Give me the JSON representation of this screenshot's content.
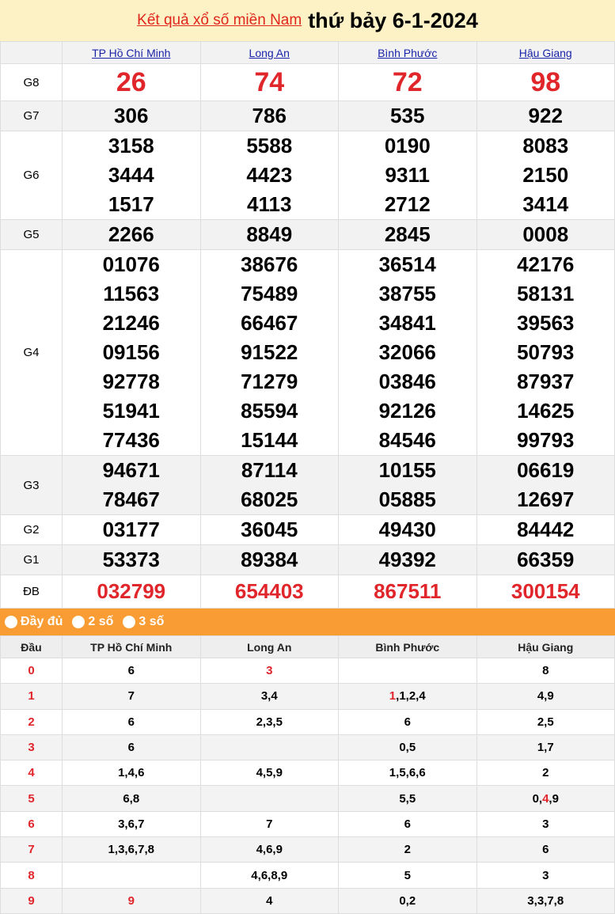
{
  "header": {
    "link": "Kết quả xổ số miền Nam",
    "date": "thứ bảy 6-1-2024"
  },
  "provinces": [
    "TP Hồ Chí Minh",
    "Long An",
    "Bình Phước",
    "Hậu Giang"
  ],
  "prizes": [
    {
      "label": "G8",
      "type": "big",
      "values": [
        [
          "26"
        ],
        [
          "74"
        ],
        [
          "72"
        ],
        [
          "98"
        ]
      ]
    },
    {
      "label": "G7",
      "values": [
        [
          "306"
        ],
        [
          "786"
        ],
        [
          "535"
        ],
        [
          "922"
        ]
      ]
    },
    {
      "label": "G6",
      "values": [
        [
          "3158",
          "3444",
          "1517"
        ],
        [
          "5588",
          "4423",
          "4113"
        ],
        [
          "0190",
          "9311",
          "2712"
        ],
        [
          "8083",
          "2150",
          "3414"
        ]
      ]
    },
    {
      "label": "G5",
      "values": [
        [
          "2266"
        ],
        [
          "8849"
        ],
        [
          "2845"
        ],
        [
          "0008"
        ]
      ]
    },
    {
      "label": "G4",
      "values": [
        [
          "01076",
          "11563",
          "21246",
          "09156",
          "92778",
          "51941",
          "77436"
        ],
        [
          "38676",
          "75489",
          "66467",
          "91522",
          "71279",
          "85594",
          "15144"
        ],
        [
          "36514",
          "38755",
          "34841",
          "32066",
          "03846",
          "92126",
          "84546"
        ],
        [
          "42176",
          "58131",
          "39563",
          "50793",
          "87937",
          "14625",
          "99793"
        ]
      ]
    },
    {
      "label": "G3",
      "values": [
        [
          "94671",
          "78467"
        ],
        [
          "87114",
          "68025"
        ],
        [
          "10155",
          "05885"
        ],
        [
          "06619",
          "12697"
        ]
      ]
    },
    {
      "label": "G2",
      "values": [
        [
          "03177"
        ],
        [
          "36045"
        ],
        [
          "49430"
        ],
        [
          "84442"
        ]
      ]
    },
    {
      "label": "G1",
      "values": [
        [
          "53373"
        ],
        [
          "89384"
        ],
        [
          "49392"
        ],
        [
          "66359"
        ]
      ]
    },
    {
      "label": "ĐB",
      "type": "db",
      "values": [
        [
          "032799"
        ],
        [
          "654403"
        ],
        [
          "867511"
        ],
        [
          "300154"
        ]
      ]
    }
  ],
  "filter": {
    "options": [
      "Đầy đủ",
      "2 số",
      "3 số"
    ]
  },
  "dau": {
    "header": "Đầu",
    "rows": [
      {
        "k": "0",
        "c": [
          {
            "d": [
              "6"
            ]
          },
          {
            "d": [
              "3"
            ],
            "red": [
              0
            ]
          },
          {
            "d": []
          },
          {
            "d": [
              "8"
            ]
          }
        ]
      },
      {
        "k": "1",
        "c": [
          {
            "d": [
              "7"
            ]
          },
          {
            "d": [
              "3",
              "4"
            ]
          },
          {
            "d": [
              "1",
              "1",
              "2",
              "4"
            ],
            "red": [
              0
            ]
          },
          {
            "d": [
              "4",
              "9"
            ]
          }
        ]
      },
      {
        "k": "2",
        "c": [
          {
            "d": [
              "6"
            ]
          },
          {
            "d": [
              "2",
              "3",
              "5"
            ]
          },
          {
            "d": [
              "6"
            ]
          },
          {
            "d": [
              "2",
              "5"
            ]
          }
        ]
      },
      {
        "k": "3",
        "c": [
          {
            "d": [
              "6"
            ]
          },
          {
            "d": []
          },
          {
            "d": [
              "0",
              "5"
            ]
          },
          {
            "d": [
              "1",
              "7"
            ]
          }
        ]
      },
      {
        "k": "4",
        "c": [
          {
            "d": [
              "1",
              "4",
              "6"
            ]
          },
          {
            "d": [
              "4",
              "5",
              "9"
            ]
          },
          {
            "d": [
              "1",
              "5",
              "6",
              "6"
            ]
          },
          {
            "d": [
              "2"
            ]
          }
        ]
      },
      {
        "k": "5",
        "c": [
          {
            "d": [
              "6",
              "8"
            ]
          },
          {
            "d": []
          },
          {
            "d": [
              "5",
              "5"
            ]
          },
          {
            "d": [
              "0",
              "4",
              "9"
            ],
            "red": [
              1
            ]
          }
        ]
      },
      {
        "k": "6",
        "c": [
          {
            "d": [
              "3",
              "6",
              "7"
            ]
          },
          {
            "d": [
              "7"
            ]
          },
          {
            "d": [
              "6"
            ]
          },
          {
            "d": [
              "3"
            ]
          }
        ]
      },
      {
        "k": "7",
        "c": [
          {
            "d": [
              "1",
              "3",
              "6",
              "7",
              "8"
            ]
          },
          {
            "d": [
              "4",
              "6",
              "9"
            ]
          },
          {
            "d": [
              "2"
            ]
          },
          {
            "d": [
              "6"
            ]
          }
        ]
      },
      {
        "k": "8",
        "c": [
          {
            "d": []
          },
          {
            "d": [
              "4",
              "6",
              "8",
              "9"
            ]
          },
          {
            "d": [
              "5"
            ]
          },
          {
            "d": [
              "3"
            ]
          }
        ]
      },
      {
        "k": "9",
        "c": [
          {
            "d": [
              "9"
            ],
            "red": [
              0
            ]
          },
          {
            "d": [
              "4"
            ]
          },
          {
            "d": [
              "0",
              "2"
            ]
          },
          {
            "d": [
              "3",
              "3",
              "7",
              "8"
            ]
          }
        ]
      }
    ]
  },
  "colors": {
    "accent": "#e0262b",
    "orange": "#f99c33",
    "link": "#1a23a8",
    "header_bg": "#fdf2c5"
  }
}
